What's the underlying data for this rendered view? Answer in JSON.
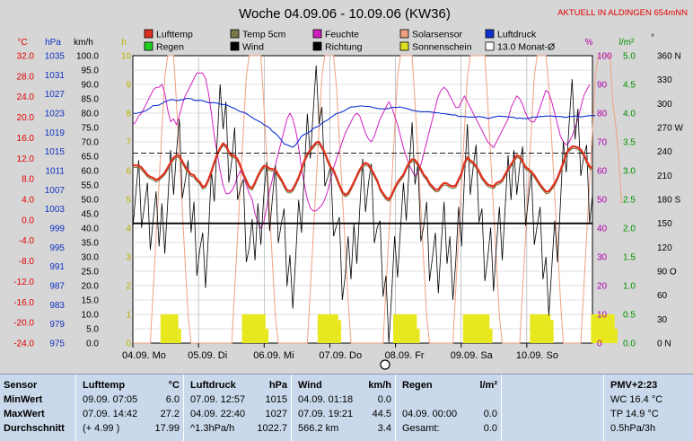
{
  "chart_data": {
    "type": "line",
    "title": "Woche 04.09.06 - 10.09.06 (KW36)",
    "location_note": "AKTUELL IN ALDINGEN 654mNN",
    "x_days": [
      "04.09. Mo",
      "05.09. Di",
      "06.09. Mi",
      "07.09. Do",
      "08.09. Fr",
      "09.09. Sa",
      "10.09. So"
    ],
    "axes_left": {
      "celsius": {
        "unit": "°C",
        "ticks": [
          "32.0",
          "28.0",
          "24.0",
          "20.0",
          "16.0",
          "12.0",
          "8.0",
          "4.0",
          "0.0",
          "-4.0",
          "-8.0",
          "-12.0",
          "-16.0",
          "-20.0",
          "-24.0"
        ],
        "range": [
          -24,
          32
        ]
      },
      "hpa": {
        "unit": "hPa",
        "ticks": [
          "1035",
          "1031",
          "1027",
          "1023",
          "1019",
          "1015",
          "1011",
          "1007",
          "1003",
          "999",
          "995",
          "991",
          "987",
          "983",
          "979",
          "975"
        ],
        "range": [
          975,
          1035
        ]
      },
      "kmh": {
        "unit": "km/h",
        "ticks": [
          "100.0",
          "95.0",
          "90.0",
          "85.0",
          "80.0",
          "75.0",
          "70.0",
          "65.0",
          "60.0",
          "55.0",
          "50.0",
          "45.0",
          "40.0",
          "35.0",
          "30.0",
          "25.0",
          "20.0",
          "15.0",
          "10.0",
          "5.0",
          "0.0"
        ],
        "range": [
          0,
          100
        ]
      },
      "h": {
        "unit": "h",
        "ticks": [
          "10",
          "9",
          "8",
          "7",
          "6",
          "5",
          "4",
          "3",
          "2",
          "1",
          "0"
        ],
        "range": [
          0,
          10
        ]
      }
    },
    "axes_right": {
      "percent": {
        "unit": "%",
        "ticks": [
          "100",
          "90",
          "80",
          "70",
          "60",
          "50",
          "40",
          "30",
          "20",
          "10",
          "0"
        ],
        "range": [
          0,
          100
        ]
      },
      "lm2": {
        "unit": "l/m²",
        "ticks": [
          "5.0",
          "4.5",
          "4.0",
          "3.5",
          "3.0",
          "2.5",
          "2.0",
          "1.5",
          "1.0",
          "0.5",
          "0.0"
        ],
        "range": [
          0,
          5
        ]
      },
      "deg": {
        "unit": "°",
        "ticks": [
          "360 N",
          "330",
          "300",
          "270 W",
          "240",
          "210",
          "180 S",
          "150",
          "120",
          "90 O",
          "60",
          "30",
          "0  N"
        ],
        "range": [
          0,
          360
        ]
      }
    },
    "legend": [
      {
        "name": "Lufttemp",
        "color": "#e03020"
      },
      {
        "name": "Temp 5cm",
        "color": "#7a7a4a"
      },
      {
        "name": "Feuchte",
        "color": "#d020c0"
      },
      {
        "name": "Solarsensor",
        "color": "#f0a080"
      },
      {
        "name": "Luftdruck",
        "color": "#1030d0"
      },
      {
        "name": "Regen",
        "color": "#20d020"
      },
      {
        "name": "Wind",
        "color": "#000000"
      },
      {
        "name": "Richtung",
        "color": "#000000"
      },
      {
        "name": "Sonnenschein",
        "color": "#e0e020"
      },
      {
        "name": "13.0 Monat-Ø",
        "color": "#ffffff"
      }
    ],
    "series": {
      "lufttemp_c": [
        10.7,
        10.6,
        10.6,
        10.2,
        9.5,
        8.8,
        8.4,
        8.2,
        7.8,
        8.1,
        8.6,
        9.2,
        10.2,
        11.2,
        12.1,
        12.6,
        12.5,
        11.4,
        10.4,
        9.6,
        8.9,
        8.7,
        7.9,
        7.4,
        6.4,
        6.7,
        7.9,
        9.5,
        11.2,
        12.8,
        14.0,
        14.9,
        14.5,
        13.3,
        12.6,
        12.5,
        11.8,
        10.5,
        9.0,
        7.7,
        6.5,
        6.2,
        7.3,
        8.6,
        9.7,
        10.5,
        10.5,
        10.0,
        9.9,
        9.8,
        8.8,
        7.9,
        6.8,
        5.8,
        5.6,
        6.0,
        7.1,
        8.3,
        9.9,
        11.6,
        12.8,
        13.7,
        14.4,
        15.1,
        15.2,
        14.2,
        13.1,
        11.6,
        10.3,
        9.7,
        8.3,
        6.8,
        5.5,
        4.9,
        5.2,
        6.2,
        7.4,
        8.6,
        9.8,
        10.7,
        11.1,
        10.8,
        9.9,
        8.8,
        7.7,
        6.1,
        5.2,
        4.4,
        4.0,
        4.9,
        6.2,
        7.3,
        8.1,
        8.8,
        10.1,
        11.2,
        11.8,
        11.7,
        10.9,
        9.9,
        8.8,
        8.2,
        7.1,
        6.5,
        5.9,
        5.9,
        6.7,
        7.2,
        7.1,
        6.7,
        6.5,
        6.7,
        7.9,
        9.1,
        11.1,
        12.2,
        11.6,
        11.2,
        10.5,
        9.5,
        8.3,
        7.6,
        6.9,
        6.7,
        6.5,
        7.2,
        7.4,
        7.8,
        8.9,
        9.9,
        10.8,
        11.7,
        12.6,
        12.3,
        11.4,
        10.3,
        9.9,
        9.4,
        8.7,
        7.8,
        6.9,
        6.2,
        5.5,
        5.6,
        6.3,
        7.1,
        8.2,
        9.7,
        11.2,
        12.9,
        13.8,
        14.3,
        14.3,
        14.1,
        13.7,
        12.8,
        11.5,
        10.4,
        10.1
      ],
      "luftdruck_hpa": [
        1023.0,
        1022.9,
        1023.1,
        1023.2,
        1023.4,
        1023.7,
        1024.1,
        1024.6,
        1024.6,
        1024.7,
        1025.0,
        1025.4,
        1025.6,
        1025.8,
        1025.8,
        1025.6,
        1025.7,
        1025.8,
        1026.0,
        1026.1,
        1026.0,
        1025.7,
        1025.6,
        1025.7,
        1025.6,
        1025.4,
        1025.2,
        1025.2,
        1025.2,
        1025.1,
        1024.9,
        1024.8,
        1024.8,
        1024.5,
        1024.2,
        1024.0,
        1023.6,
        1023.3,
        1023.2,
        1022.9,
        1022.5,
        1022.1,
        1021.7,
        1021.4,
        1021.1,
        1020.6,
        1020.3,
        1019.9,
        1019.2,
        1018.8,
        1018.2,
        1017.4,
        1016.6,
        1016.4,
        1016.1,
        1015.9,
        1016.4,
        1017.3,
        1018.2,
        1018.6,
        1018.8,
        1019.2,
        1019.8,
        1020.1,
        1020.3,
        1020.9,
        1021.3,
        1021.6,
        1022.1,
        1022.5,
        1022.9,
        1023.1,
        1023.3,
        1023.6,
        1024.0,
        1024.3,
        1024.3,
        1024.4,
        1024.5,
        1024.5,
        1024.4,
        1024.4,
        1024.3,
        1024.1,
        1024.0,
        1023.9,
        1023.9,
        1023.9,
        1024.0,
        1024.2,
        1024.2,
        1024.2,
        1024.3,
        1024.1,
        1024.0,
        1023.8,
        1023.6,
        1023.5,
        1023.4,
        1023.3,
        1023.3,
        1023.3,
        1023.3,
        1023.2,
        1023.1,
        1023.1,
        1022.9,
        1022.9,
        1022.8,
        1022.7,
        1022.6,
        1022.6,
        1022.3,
        1022.3,
        1022.3,
        1022.2,
        1022.2,
        1022.2,
        1022.2,
        1022.3,
        1022.2,
        1022.1,
        1021.9,
        1022.0,
        1022.2,
        1022.3,
        1022.4,
        1022.3,
        1022.3,
        1022.2,
        1022.2,
        1022.1,
        1021.9,
        1022.0,
        1021.9,
        1021.9,
        1021.9,
        1022.1,
        1022.2,
        1022.2,
        1022.3,
        1022.3,
        1022.4,
        1022.4,
        1022.4,
        1022.3,
        1022.3,
        1022.3,
        1022.2,
        1022.1,
        1022.3,
        1022.3,
        1022.4,
        1022.4,
        1022.2,
        1022.3,
        1022.4,
        1022.5,
        1022.5,
        1022.5
      ],
      "feuchte_pct": [
        76,
        77,
        79,
        80,
        82,
        84,
        86,
        88,
        89,
        89,
        90,
        87,
        81,
        77,
        78,
        76,
        79,
        83,
        86,
        88,
        90,
        92,
        94,
        94,
        94,
        92,
        87,
        80,
        72,
        66,
        60,
        55,
        52,
        52,
        53,
        55,
        58,
        60,
        58,
        55,
        52,
        50,
        45,
        42,
        40,
        42,
        47,
        53,
        57,
        62,
        66,
        70,
        74,
        78,
        80,
        78,
        74,
        68,
        61,
        55,
        50,
        47,
        46,
        46,
        47,
        48,
        50,
        53,
        57,
        61,
        64,
        67,
        70,
        73,
        75,
        77,
        79,
        80,
        79,
        76,
        73,
        71,
        70,
        72,
        75,
        78,
        80,
        82,
        84,
        82,
        79,
        76,
        72,
        68,
        65,
        62,
        60,
        58,
        59,
        62,
        66,
        70,
        74,
        78,
        82,
        86,
        88,
        89,
        88,
        86,
        84,
        82,
        82,
        84,
        86,
        84,
        82,
        80,
        78,
        76,
        74,
        72,
        70,
        69,
        68,
        70,
        72,
        74,
        76,
        78,
        82,
        84,
        86,
        85,
        83,
        80,
        78,
        77,
        77,
        79,
        82,
        85,
        88,
        87,
        84,
        80,
        76,
        72,
        70,
        69,
        70,
        72,
        75,
        78,
        82,
        86,
        88,
        90
      ],
      "sonnenschein_h": [
        0,
        0,
        0,
        0,
        0,
        0,
        0,
        0,
        0,
        0,
        1.0,
        1.0,
        1.0,
        1.0,
        1.0,
        1.0,
        0.5,
        0,
        0,
        0,
        0,
        0,
        0,
        0,
        0,
        0,
        0,
        0,
        0,
        0,
        0,
        0,
        0,
        0,
        0,
        0,
        0,
        0,
        1.0,
        1.0,
        1.0,
        1.0,
        1.0,
        1.0,
        1.0,
        1.0,
        0.5,
        0,
        0,
        0,
        0,
        0,
        0,
        0,
        0,
        0,
        0,
        0,
        0,
        0,
        0,
        0,
        0,
        0,
        1.0,
        1.0,
        1.0,
        1.0,
        1.0,
        1.0,
        1.0,
        0.8,
        0,
        0,
        0,
        0,
        0,
        0,
        0,
        0,
        0,
        0,
        0,
        0,
        0,
        0,
        0,
        0,
        0,
        0,
        1.0,
        1.0,
        1.0,
        1.0,
        1.0,
        1.0,
        1.0,
        1.0,
        0.5,
        0,
        0,
        0,
        0,
        0,
        0,
        0,
        0,
        0,
        0,
        0,
        0,
        0,
        0,
        0,
        1.0,
        1.0,
        1.0,
        1.0,
        1.0,
        1.0,
        1.0,
        1.0,
        1.0,
        0.5,
        0,
        0,
        0,
        0,
        0,
        0,
        0,
        0,
        0,
        0,
        0,
        0,
        0,
        1.0,
        1.0,
        1.0,
        1.0,
        1.0,
        1.0,
        1.0,
        0.8,
        0,
        0,
        0,
        0,
        0,
        0,
        0,
        0,
        0,
        0,
        0,
        0,
        0,
        1.0,
        1.0,
        1.0,
        1.0,
        1.0,
        1.0,
        1.0,
        1.0,
        0.5,
        0,
        0
      ],
      "monat_avg_c": 13.0,
      "richtung_level_deg": 150
    }
  },
  "table": {
    "sensor": {
      "head": "Sensor",
      "rows": [
        "MinWert",
        "MaxWert",
        "Durchschnitt"
      ]
    },
    "lufttemp": {
      "head": "Lufttemp",
      "unit": "°C",
      "rows": [
        {
          "a": "09.09.  07:05",
          "b": "6.0"
        },
        {
          "a": "07.09.  14:42",
          "b": "27.2"
        },
        {
          "a": "(+ 4.99 )",
          "b": "17.99"
        }
      ]
    },
    "luftdruck": {
      "head": "Luftdruck",
      "unit": "hPa",
      "rows": [
        {
          "a": "07.09.  12:57",
          "b": "1015"
        },
        {
          "a": "04.09.  22:40",
          "b": "1027"
        },
        {
          "a": "^1.3hPa/h",
          "b": "1022.7"
        }
      ]
    },
    "wind": {
      "head": "Wind",
      "unit": "km/h",
      "rows": [
        {
          "a": "04.09.  01:18",
          "b": "0.0"
        },
        {
          "a": "07.09.  19:21",
          "b": "44.5"
        },
        {
          "a": "566.2 km",
          "b": "3.4"
        }
      ]
    },
    "regen": {
      "head": "Regen",
      "unit": "l/m²",
      "rows": [
        {
          "a": "",
          "b": ""
        },
        {
          "a": "04.09.  00:00",
          "b": "0.0"
        },
        {
          "a": "Gesamt:",
          "b": "0.0"
        }
      ]
    },
    "pmv": {
      "head": "PMV+2:23",
      "rows": [
        "WC 16.4 °C",
        "TP 14.9 °C",
        "0.5hPa/3h"
      ]
    }
  }
}
